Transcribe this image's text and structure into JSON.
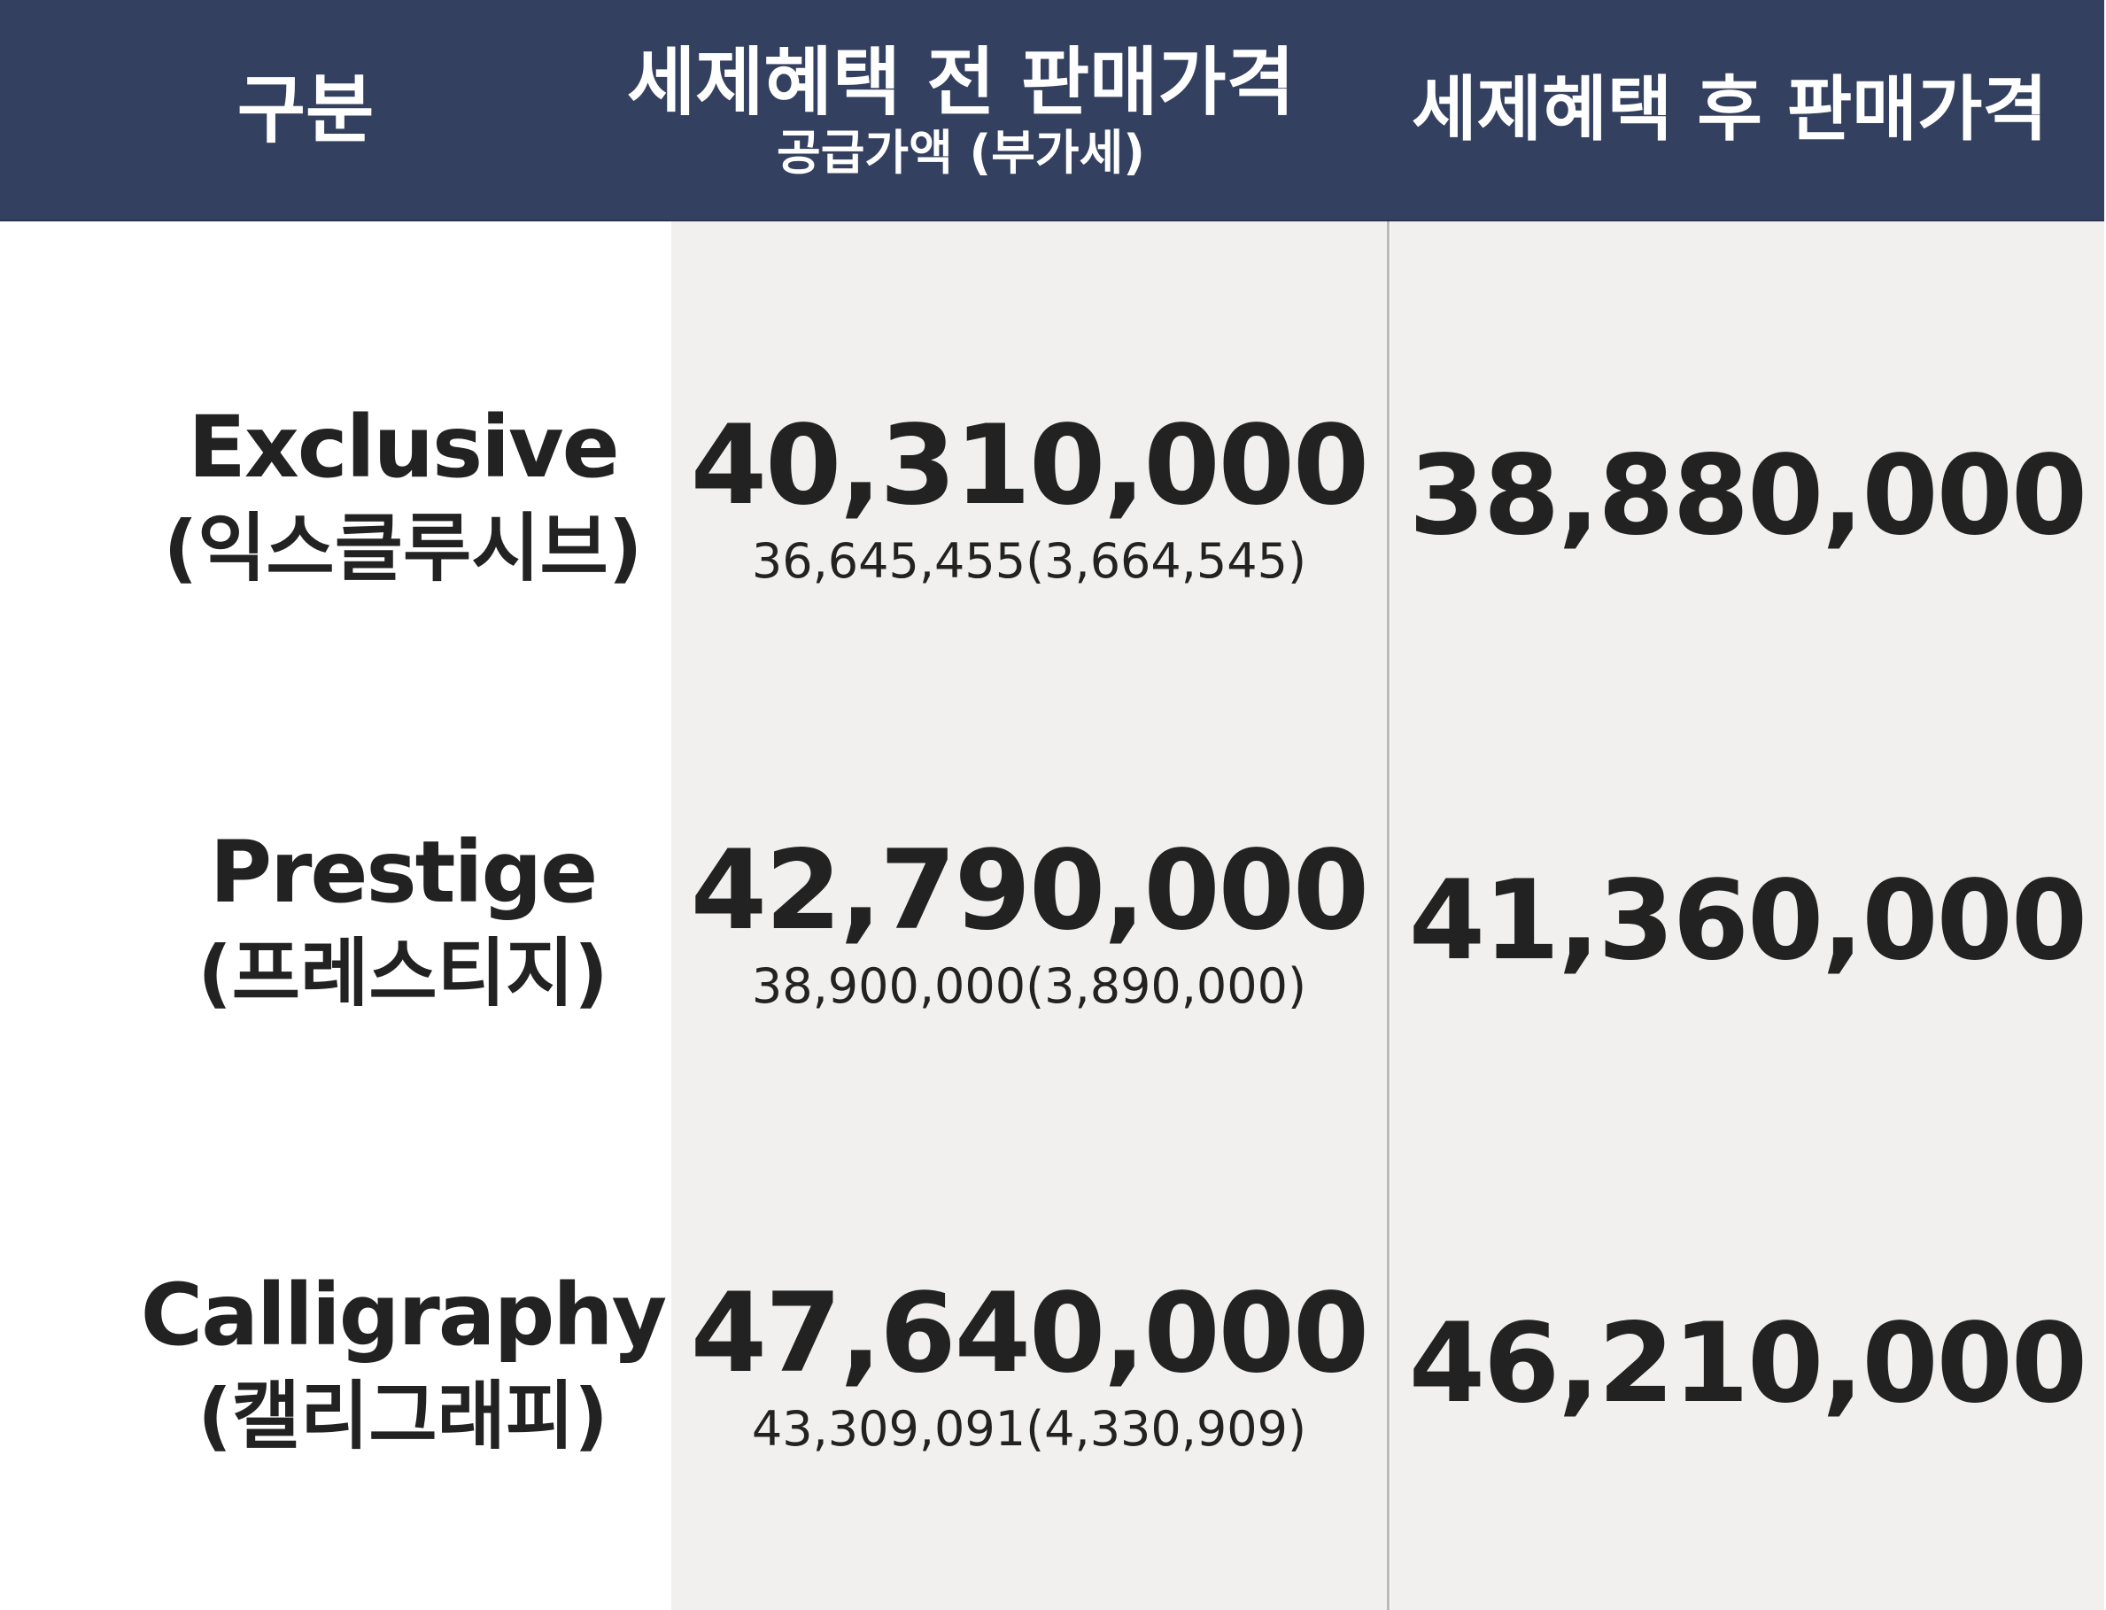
{
  "header": {
    "col1": "구분",
    "col2_title": "세제혜택 전 판매가격",
    "col2_sub": "공급가액 (부가세)",
    "col3": "세제혜택 후 판매가격"
  },
  "rows": [
    {
      "name_en": "Exclusive",
      "name_ko": "(익스클루시브)",
      "price_before": "40,310,000",
      "price_before_detail": "36,645,455(3,664,545)",
      "price_after": "38,880,000"
    },
    {
      "name_en": "Prestige",
      "name_ko": "(프레스티지)",
      "price_before": "42,790,000",
      "price_before_detail": "38,900,000(3,890,000)",
      "price_after": "41,360,000"
    },
    {
      "name_en": "Calligraphy",
      "name_ko": "(캘리그래피)",
      "price_before": "47,640,000",
      "price_before_detail": "43,309,091(4,330,909)",
      "price_after": "46,210,000"
    }
  ],
  "colors": {
    "header_bg": "#34405f",
    "header_text": "#ffffff",
    "shaded_column": "#f1f0ef",
    "text": "#222222"
  }
}
